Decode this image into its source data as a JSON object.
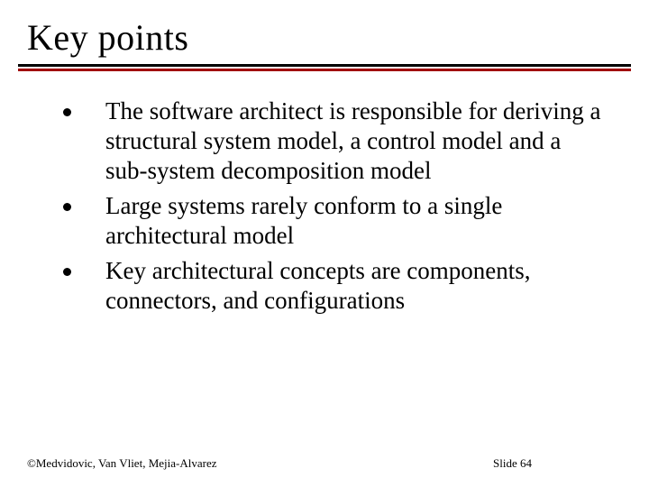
{
  "title": "Key points",
  "accent_color": "#a00000",
  "bullets": [
    "The software architect is responsible for deriving a structural system model, a control model and a sub-system decomposition model",
    "Large systems rarely conform to a single architectural model",
    "Key architectural concepts are components, connectors, and configurations"
  ],
  "footer": {
    "left": "©Medvidovic, Van Vliet, Mejia-Alvarez",
    "right": "Slide 64"
  },
  "title_fontsize": 40,
  "body_fontsize": 27,
  "footer_fontsize": 13,
  "background_color": "#ffffff",
  "text_color": "#000000"
}
